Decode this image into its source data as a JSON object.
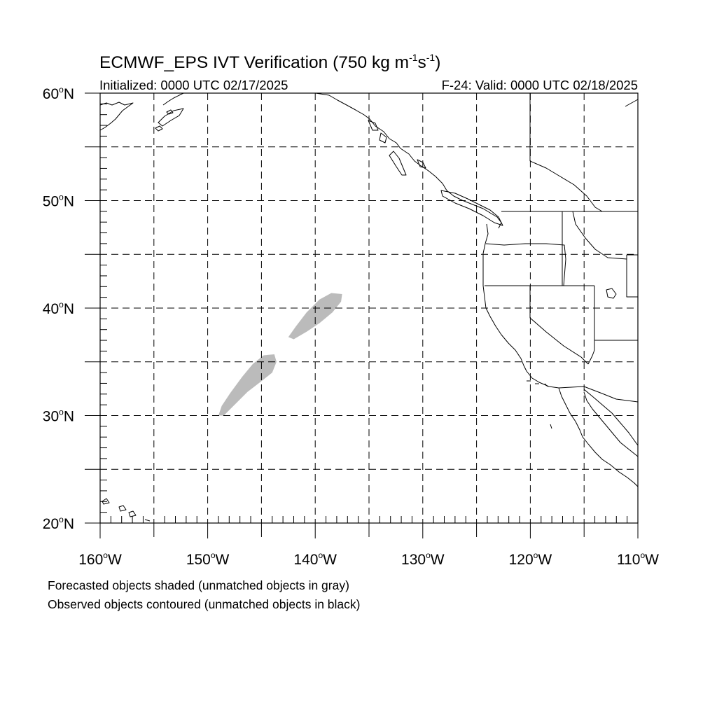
{
  "title": {
    "main": "ECMWF_EPS IVT Verification (750 kg m",
    "sup1": "-1",
    "mid": "s",
    "sup2": "-1",
    "close": ")"
  },
  "subtitle_left": "Initialized: 0000 UTC 02/17/2025",
  "subtitle_right": "F-24: Valid: 0000 UTC 02/18/2025",
  "lat_labels": [
    "60",
    "50",
    "40",
    "30",
    "20"
  ],
  "lat_suffix": "N",
  "lon_labels": [
    "160",
    "150",
    "140",
    "130",
    "120",
    "110"
  ],
  "lon_suffix": "W",
  "degree_symbol": "o",
  "legend": {
    "line1": "Forecasted objects shaded (unmatched objects in gray)",
    "line2": "Observed objects contoured (unmatched objects in black)"
  },
  "colors": {
    "unmatched_forecast": "#bbbbbb",
    "coast": "#000000",
    "grid": "#000000"
  },
  "map_extent": {
    "lon_min": -160,
    "lon_max": -110,
    "lat_min": 20,
    "lat_max": 60
  },
  "forecast_objects": [
    {
      "name": "object-north",
      "status": "unmatched",
      "outline_lonlat": [
        [
          -142.5,
          37.3
        ],
        [
          -141.8,
          38.3
        ],
        [
          -140.8,
          39.6
        ],
        [
          -139.6,
          40.8
        ],
        [
          -138.5,
          41.4
        ],
        [
          -137.5,
          41.3
        ],
        [
          -137.6,
          40.6
        ],
        [
          -138.4,
          39.6
        ],
        [
          -139.6,
          38.6
        ],
        [
          -140.8,
          37.8
        ],
        [
          -142.0,
          37.1
        ]
      ]
    },
    {
      "name": "object-south",
      "status": "unmatched",
      "outline_lonlat": [
        [
          -149.0,
          30.0
        ],
        [
          -148.7,
          30.9
        ],
        [
          -147.9,
          32.1
        ],
        [
          -146.8,
          33.6
        ],
        [
          -145.8,
          34.8
        ],
        [
          -144.8,
          35.6
        ],
        [
          -143.8,
          35.7
        ],
        [
          -143.6,
          35.0
        ],
        [
          -144.0,
          34.0
        ],
        [
          -145.0,
          33.2
        ],
        [
          -146.3,
          32.2
        ],
        [
          -147.5,
          31.0
        ],
        [
          -148.5,
          30.0
        ]
      ]
    }
  ]
}
